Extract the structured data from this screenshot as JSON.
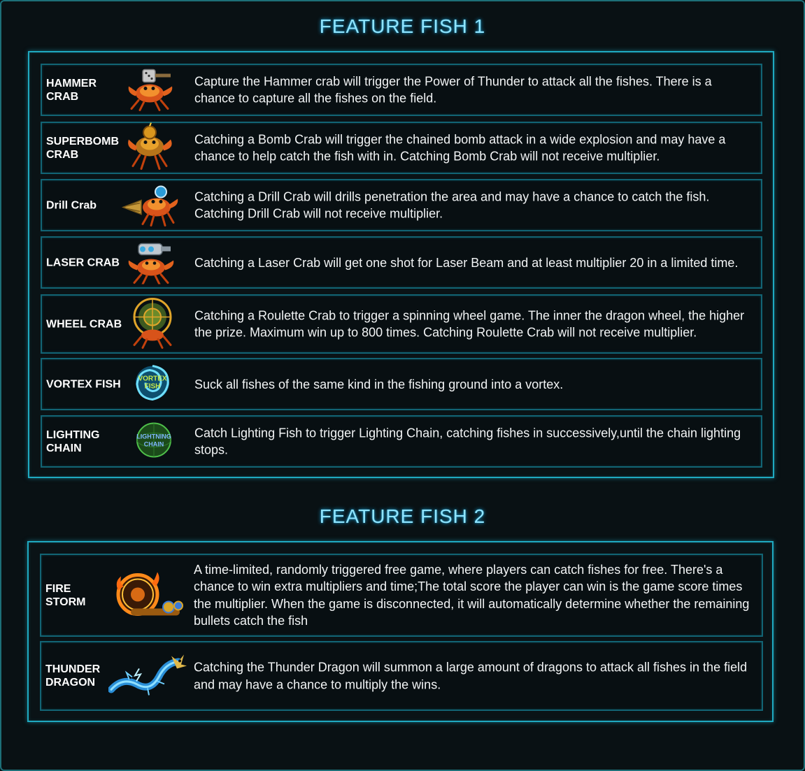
{
  "sections": [
    {
      "title": "FEATURE FISH 1",
      "items": [
        {
          "name": "HAMMER\nCRAB",
          "icon": "hammer-crab-icon",
          "description": "Capture the Hammer crab will trigger the Power of Thunder to attack all the fishes. There is a chance to capture all the fishes on the field."
        },
        {
          "name": "SUPERBOMB\nCRAB",
          "icon": "superbomb-crab-icon",
          "description": "Catching a Bomb Crab will trigger the chained bomb attack in a wide explosion and may have a chance to help catch the fish with in. Catching Bomb Crab will not receive multiplier."
        },
        {
          "name": "Drill Crab",
          "icon": "drill-crab-icon",
          "description": "Catching a Drill Crab will drills penetration the area and may have a chance to catch the fish. Catching Drill Crab will not receive multiplier."
        },
        {
          "name": "LASER CRAB",
          "icon": "laser-crab-icon",
          "description": "Catching a Laser Crab will get one shot for Laser Beam and at least multiplier 20 in a limited time."
        },
        {
          "name": "WHEEL CRAB",
          "icon": "wheel-crab-icon",
          "description": "Catching a Roulette Crab to trigger a spinning wheel game. The inner the dragon wheel, the higher the prize. Maximum win up to 800 times. Catching Roulette Crab will not receive multiplier."
        },
        {
          "name": "VORTEX FISH",
          "icon": "vortex-fish-icon",
          "icon_text": "VORTEX\nFISH",
          "description": "Suck all fishes of the same kind in the fishing ground into a vortex."
        },
        {
          "name": "LIGHTING\nCHAIN",
          "icon": "lightning-chain-icon",
          "icon_text": "LIGHTNING\nCHAIN",
          "description": "Catch Lighting Fish to trigger Lighting Chain, catching fishes in successively,until the chain lighting stops."
        }
      ]
    },
    {
      "title": "FEATURE FISH 2",
      "items": [
        {
          "name": "FIRE\nSTORM",
          "icon": "fire-storm-icon",
          "description": "A time-limited, randomly triggered free game, where players can catch fishes for free. There's a chance to win extra multipliers and time;The total score the player can win is the game score times the multiplier. When the game is disconnected, it will automatically determine whether the remaining bullets catch the fish"
        },
        {
          "name": "THUNDER\nDRAGON",
          "icon": "thunder-dragon-icon",
          "description": "Catching the Thunder Dragon will summon a large amount of dragons to attack all fishes in the field and may have a chance to multiply the wins."
        }
      ]
    }
  ],
  "colors": {
    "background": "#091114",
    "title": "#8fe4ff",
    "panel_border": "#1fa9c0",
    "row_border": "#126474",
    "text": "#f2f4f5"
  }
}
